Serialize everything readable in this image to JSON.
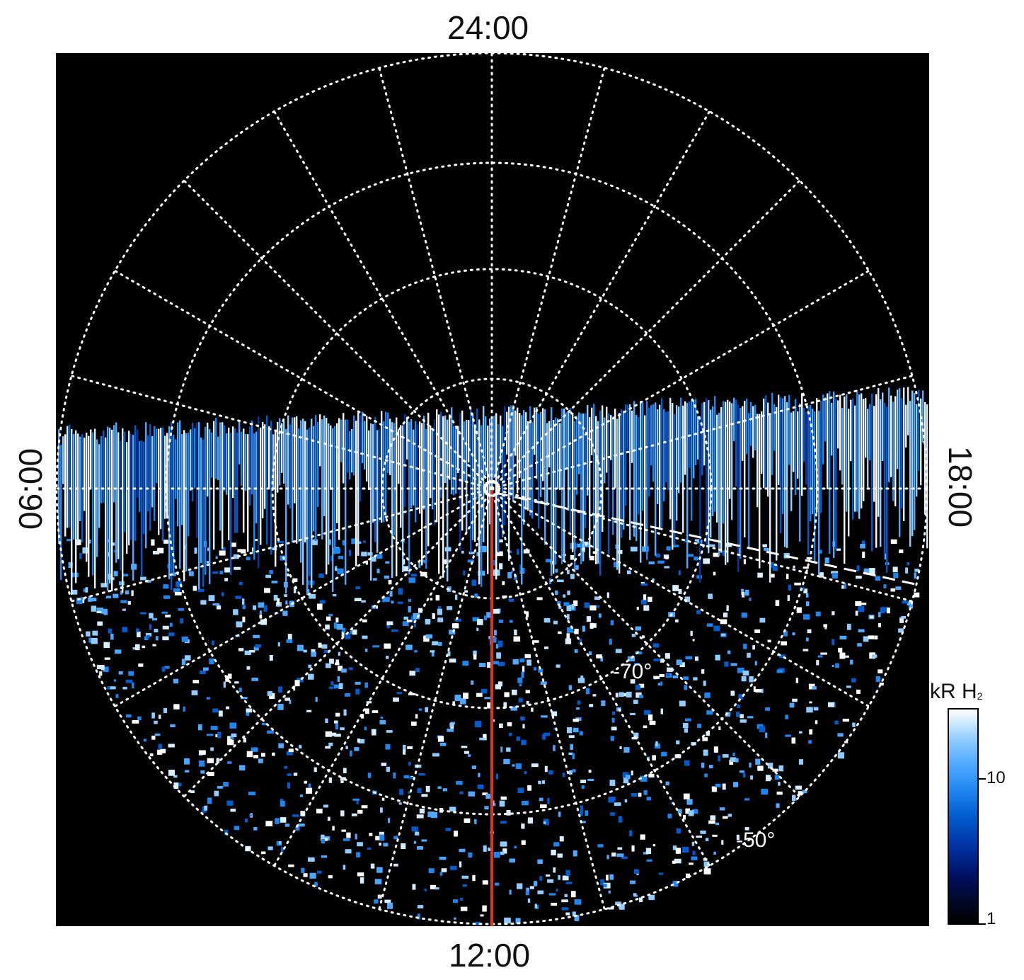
{
  "local_time_labels": {
    "top": "24:00",
    "bottom": "12:00",
    "left": "06:00",
    "right": "18:00"
  },
  "latitude_labels": [
    "-70°",
    "-50°"
  ],
  "colorbar": {
    "unit": "kR H",
    "subscript": "2",
    "tick_labels": [
      "10",
      "1"
    ],
    "scale": "log",
    "range": [
      1,
      30
    ]
  },
  "colors": {
    "background": "#000000",
    "grid": "#ffffff",
    "meridian_line": "#e0321e",
    "emission_low": "#001060",
    "emission_mid": "#1f86ef",
    "emission_high": "#ffffff"
  }
}
